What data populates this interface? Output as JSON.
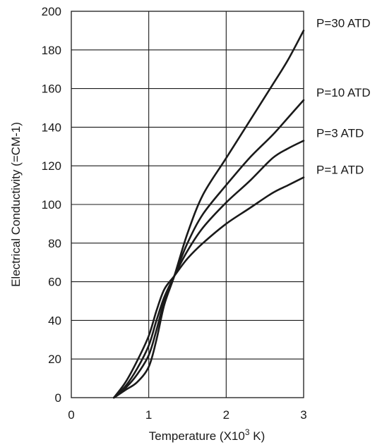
{
  "chart_data": {
    "type": "line",
    "xlabel": "Temperature (X10",
    "xlabel_superscript": "3",
    "xlabel_suffix": " K)",
    "ylabel": "Electrical Conductivity (=CM-1)",
    "xlim": [
      0,
      3
    ],
    "ylim": [
      0,
      200
    ],
    "x_ticks": [
      "0",
      "1",
      "2",
      "3"
    ],
    "y_ticks": [
      "0",
      "20",
      "40",
      "60",
      "80",
      "100",
      "120",
      "140",
      "160",
      "180",
      "200"
    ],
    "grid": true,
    "series": [
      {
        "name": "P=30 ATD",
        "x": [
          0.55,
          0.7,
          0.85,
          1.0,
          1.1,
          1.2,
          1.33,
          1.5,
          1.7,
          2.0,
          2.3,
          2.6,
          2.8,
          3.0
        ],
        "y": [
          0,
          4,
          8,
          16,
          30,
          48,
          63,
          85,
          105,
          124,
          143,
          162,
          175,
          190
        ]
      },
      {
        "name": "P=10 ATD",
        "x": [
          0.55,
          0.7,
          0.85,
          1.0,
          1.1,
          1.2,
          1.33,
          1.5,
          1.7,
          2.0,
          2.3,
          2.6,
          2.8,
          3.0
        ],
        "y": [
          0,
          5,
          12,
          22,
          35,
          50,
          63,
          80,
          95,
          110,
          124,
          136,
          145,
          154
        ]
      },
      {
        "name": "P=3 ATD",
        "x": [
          0.55,
          0.7,
          0.85,
          1.0,
          1.1,
          1.2,
          1.33,
          1.5,
          1.7,
          2.0,
          2.3,
          2.6,
          2.8,
          3.0
        ],
        "y": [
          0,
          6,
          15,
          27,
          40,
          52,
          63,
          76,
          88,
          101,
          112,
          124,
          129,
          133
        ]
      },
      {
        "name": "P=1 ATD",
        "x": [
          0.55,
          0.7,
          0.85,
          1.0,
          1.1,
          1.2,
          1.33,
          1.5,
          1.7,
          2.0,
          2.3,
          2.6,
          2.8,
          3.0
        ],
        "y": [
          0,
          8,
          19,
          32,
          45,
          56,
          63,
          72,
          80,
          90,
          98,
          106,
          110,
          114
        ]
      }
    ]
  }
}
